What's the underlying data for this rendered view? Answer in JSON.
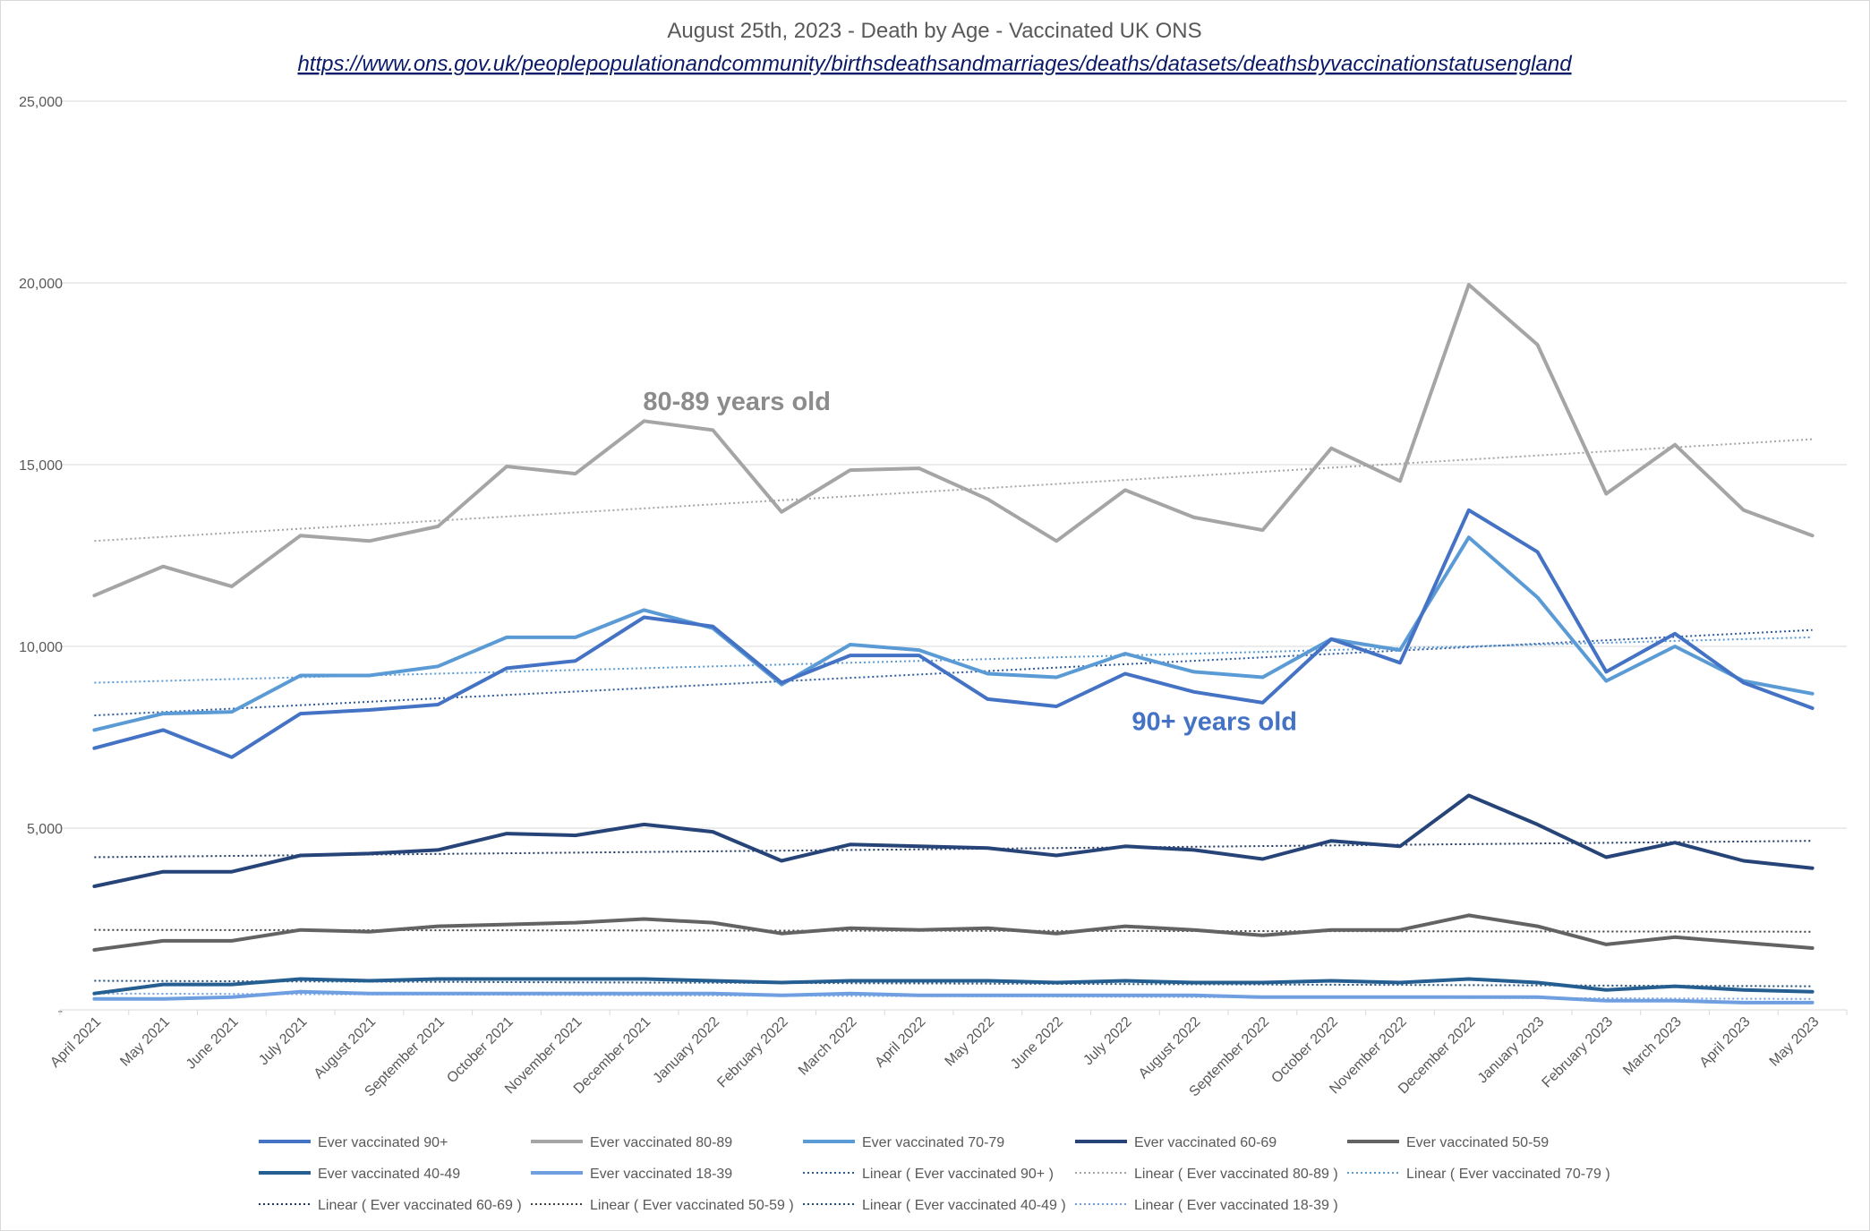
{
  "chart_data": {
    "type": "line",
    "title": "August 25th, 2023 - Death by Age - Vaccinated  UK ONS",
    "subtitle": "https://www.ons.gov.uk/peoplepopulationandcommunity/birthsdeathsandmarriages/deaths/datasets/deathsbyvaccinationstatusengland",
    "xlabel": "",
    "ylabel": "",
    "ylim": [
      0,
      25000
    ],
    "yticks": [
      0,
      5000,
      10000,
      15000,
      20000,
      25000
    ],
    "ytick_labels": [
      "-",
      "5,000",
      "10,000",
      "15,000",
      "20,000",
      "25,000"
    ],
    "grid": "horizontal",
    "legend_position": "bottom",
    "categories": [
      "April 2021",
      "May 2021",
      "June 2021",
      "July 2021",
      "August 2021",
      "September 2021",
      "October 2021",
      "November 2021",
      "December 2021",
      "January 2022",
      "February 2022",
      "March 2022",
      "April 2022",
      "May 2022",
      "June 2022",
      "July 2022",
      "August 2022",
      "September 2022",
      "October 2022",
      "November 2022",
      "December 2022",
      "January 2023",
      "February 2023",
      "March 2023",
      "April 2023",
      "May 2023"
    ],
    "series": [
      {
        "name": "Ever vaccinated 90+",
        "color": "#4472c4",
        "values": [
          7200,
          7700,
          6950,
          8150,
          8250,
          8400,
          9400,
          9600,
          10800,
          10550,
          9000,
          9750,
          9750,
          8550,
          8350,
          9250,
          8750,
          8450,
          10200,
          9550,
          13750,
          12600,
          9300,
          10350,
          9000,
          8300
        ]
      },
      {
        "name": "Ever vaccinated 80-89",
        "color": "#a5a5a5",
        "values": [
          11400,
          12200,
          11650,
          13050,
          12900,
          13300,
          14950,
          14750,
          16200,
          15950,
          13700,
          14850,
          14900,
          14050,
          12900,
          14300,
          13550,
          13200,
          15450,
          14550,
          19950,
          18300,
          14200,
          15550,
          13750,
          13050
        ]
      },
      {
        "name": "Ever vaccinated 70-79",
        "color": "#5b9bd5",
        "values": [
          7700,
          8150,
          8200,
          9200,
          9200,
          9450,
          10250,
          10250,
          11000,
          10500,
          8950,
          10050,
          9900,
          9250,
          9150,
          9800,
          9300,
          9150,
          10200,
          9900,
          13000,
          11350,
          9050,
          10000,
          9050,
          8700
        ]
      },
      {
        "name": "Ever vaccinated 60-69",
        "color": "#264478",
        "values": [
          3400,
          3800,
          3800,
          4250,
          4300,
          4400,
          4850,
          4800,
          5100,
          4900,
          4100,
          4550,
          4500,
          4450,
          4250,
          4500,
          4400,
          4150,
          4650,
          4500,
          5900,
          5100,
          4200,
          4600,
          4100,
          3900
        ]
      },
      {
        "name": "Ever vaccinated 50-59",
        "color": "#636363",
        "values": [
          1650,
          1900,
          1900,
          2200,
          2150,
          2300,
          2350,
          2400,
          2500,
          2400,
          2100,
          2250,
          2200,
          2250,
          2100,
          2300,
          2200,
          2050,
          2200,
          2200,
          2600,
          2300,
          1800,
          2000,
          1850,
          1700
        ]
      },
      {
        "name": "Ever vaccinated 40-49",
        "color": "#255e91",
        "values": [
          450,
          700,
          700,
          850,
          800,
          850,
          850,
          850,
          850,
          800,
          750,
          800,
          800,
          800,
          750,
          800,
          750,
          750,
          800,
          750,
          850,
          750,
          550,
          650,
          550,
          500
        ]
      },
      {
        "name": "Ever vaccinated 18-39",
        "color": "#6f9fe0",
        "values": [
          300,
          300,
          350,
          500,
          450,
          450,
          450,
          450,
          450,
          450,
          400,
          450,
          400,
          400,
          400,
          400,
          400,
          350,
          350,
          350,
          350,
          350,
          250,
          250,
          200,
          200
        ]
      }
    ],
    "trendlines": [
      {
        "name": "Linear ( Ever vaccinated 90+ )",
        "color": "#2e5a9e",
        "start": 8100,
        "end": 10450
      },
      {
        "name": "Linear ( Ever vaccinated 80-89 )",
        "color": "#a5a5a5",
        "start": 12900,
        "end": 15700
      },
      {
        "name": "Linear ( Ever vaccinated 70-79 )",
        "color": "#5b9bd5",
        "start": 9000,
        "end": 10250
      },
      {
        "name": "Linear ( Ever vaccinated 60-69 )",
        "color": "#1f3864",
        "start": 4200,
        "end": 4650
      },
      {
        "name": "Linear ( Ever vaccinated 50-59 )",
        "color": "#404040",
        "start": 2200,
        "end": 2150
      },
      {
        "name": "Linear ( Ever vaccinated 40-49 )",
        "color": "#1f4e79",
        "start": 800,
        "end": 650
      },
      {
        "name": "Linear ( Ever vaccinated 18-39 )",
        "color": "#6f9fe0",
        "start": 450,
        "end": 300
      }
    ],
    "annotations": [
      {
        "text": "80-89 years old",
        "color": "#8c8c8c",
        "x_index": 9.35,
        "y": 16500
      },
      {
        "text": "90+ years old",
        "color": "#4472c4",
        "x_index": 16.3,
        "y": 7700
      }
    ]
  }
}
